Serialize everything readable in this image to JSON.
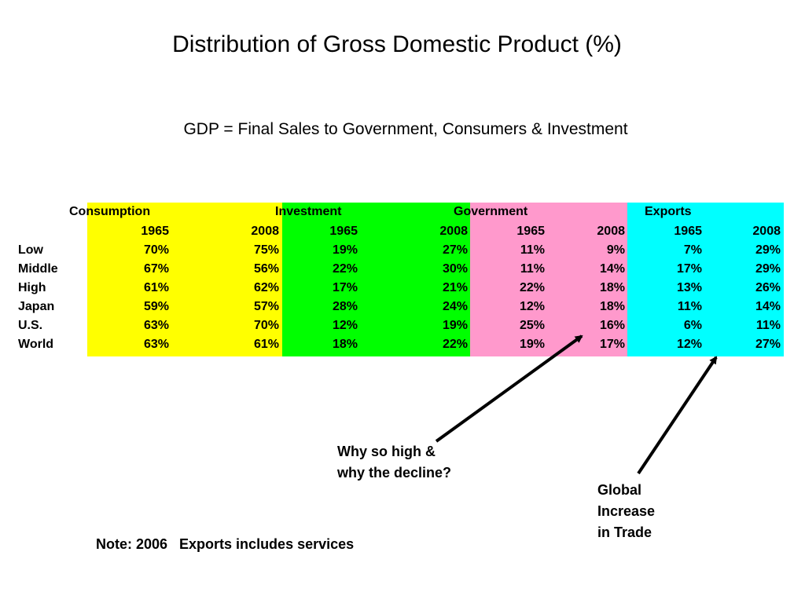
{
  "title": "Distribution of Gross Domestic Product (%)",
  "subtitle": "GDP = Final Sales to Government, Consumers & Investment",
  "table": {
    "groups": [
      "Consumption",
      "Investment",
      "Government",
      "Exports"
    ],
    "years": [
      "1965",
      "2008",
      "1965",
      "2008",
      "1965",
      "2008",
      "1965",
      "2008"
    ],
    "rows": [
      {
        "label": "Low",
        "values": [
          "70%",
          "75%",
          "19%",
          "27%",
          "11%",
          "9%",
          "7%",
          "29%"
        ]
      },
      {
        "label": "Middle",
        "values": [
          "67%",
          "56%",
          "22%",
          "30%",
          "11%",
          "14%",
          "17%",
          "29%"
        ]
      },
      {
        "label": "High",
        "values": [
          "61%",
          "62%",
          "17%",
          "21%",
          "22%",
          "18%",
          "13%",
          "26%"
        ]
      },
      {
        "label": "Japan",
        "values": [
          "59%",
          "57%",
          "28%",
          "24%",
          "12%",
          "18%",
          "11%",
          "14%"
        ]
      },
      {
        "label": "U.S.",
        "values": [
          "63%",
          "70%",
          "12%",
          "19%",
          "25%",
          "16%",
          "6%",
          "11%"
        ]
      },
      {
        "label": "World",
        "values": [
          "63%",
          "61%",
          "18%",
          "22%",
          "19%",
          "17%",
          "12%",
          "27%"
        ]
      }
    ],
    "band_colors": {
      "consumption": "#ffff00",
      "investment": "#00ff00",
      "government": "#ff99cc",
      "exports": "#00ffff"
    }
  },
  "annotations": {
    "why_line1": "Why so high &",
    "why_line2": "why the decline?",
    "global_line1": "Global",
    "global_line2": "Increase",
    "global_line3": "in Trade"
  },
  "note": "Note: 2006   Exports includes services"
}
